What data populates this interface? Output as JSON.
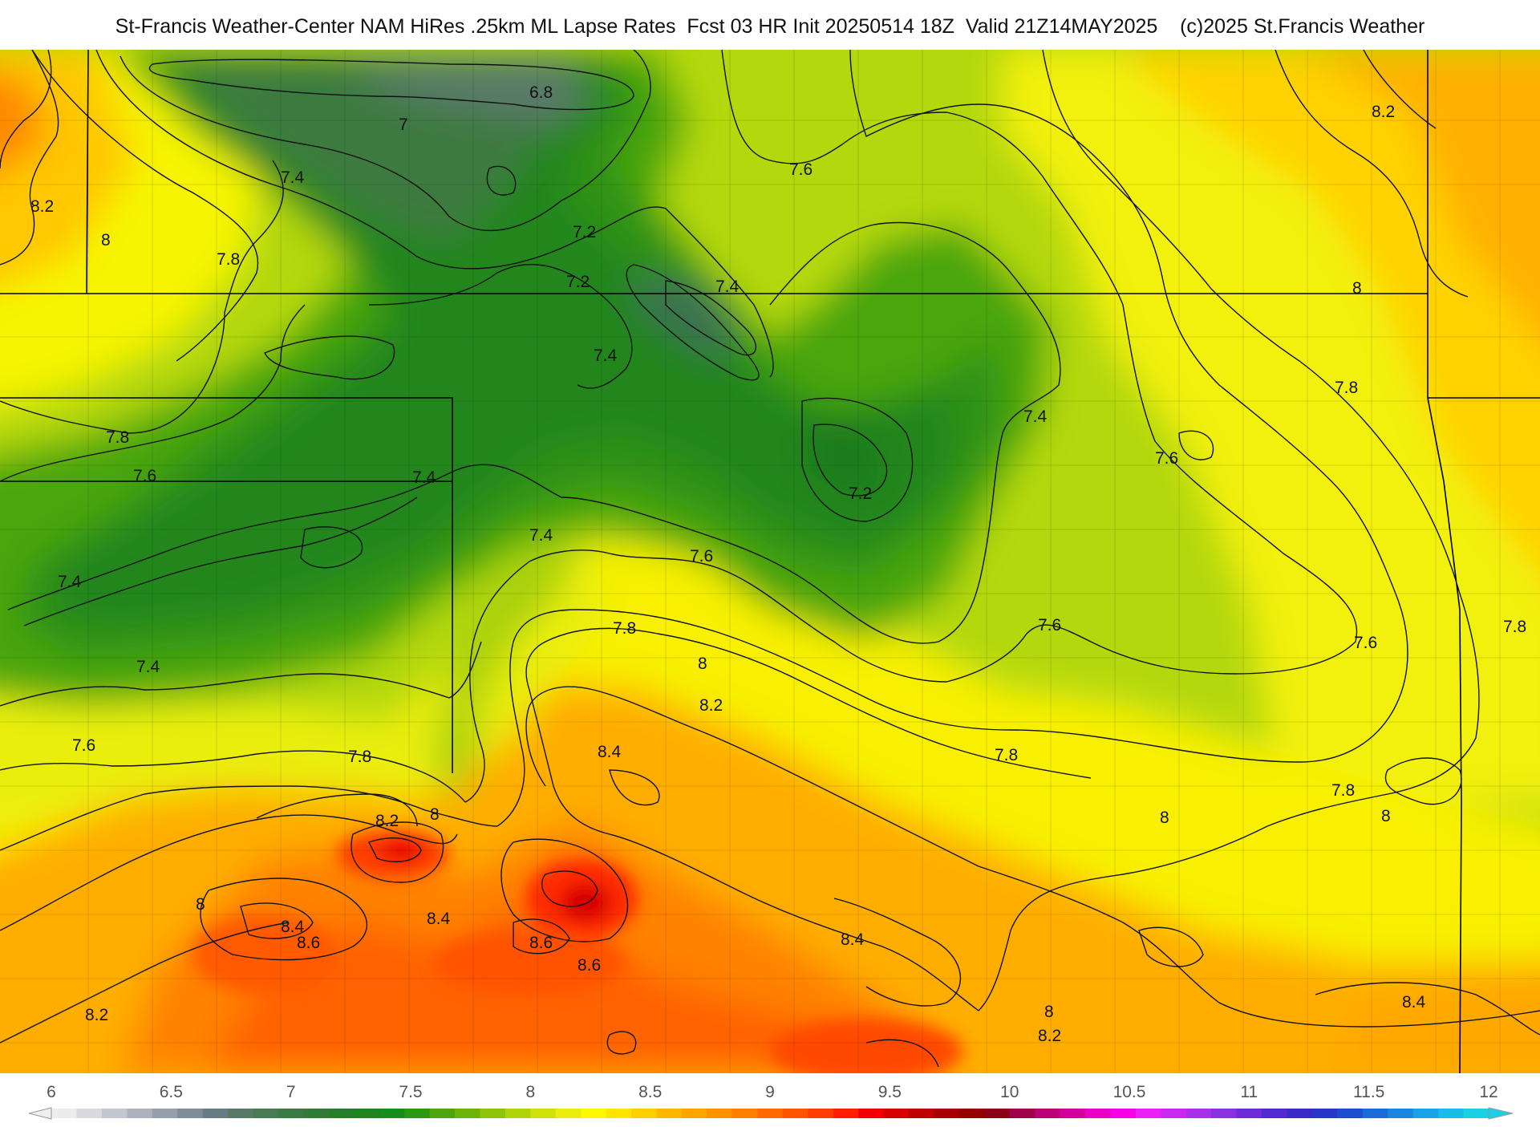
{
  "header": {
    "title": "St-Francis Weather-Center NAM HiRes .25km ML Lapse Rates  Fcst 03 HR Init 20250514 18Z  Valid 21Z14MAY2025    (c)2025 St.Francis Weather"
  },
  "contour_labels": {
    "l01": "6.8",
    "l02": "7",
    "l03": "7.4",
    "l04": "8.2",
    "l05": "8",
    "l06": "7.8",
    "l07": "7.2",
    "l08": "7.2",
    "l09": "7.4",
    "l10": "7.6",
    "l11": "8.2",
    "l12": "8",
    "l13": "7.4",
    "l14": "7.8",
    "l15": "7.8",
    "l16": "7.6",
    "l17": "7.4",
    "l18": "7.2",
    "l19": "7.6",
    "l20": "7.4",
    "l21": "7.4",
    "l22": "7.6",
    "l23": "7.8",
    "l24": "7.4",
    "l25": "7.4",
    "l26": "7.6",
    "l27": "7.6",
    "l28": "7.8",
    "l29": "8",
    "l30": "8.2",
    "l31": "7.6",
    "l32": "7.8",
    "l33": "7.8",
    "l34": "8.4",
    "l35": "8.2",
    "l36": "8",
    "l37": "7.8",
    "l38": "8",
    "l39": "8",
    "l40": "8",
    "l41": "8.4",
    "l42": "8.6",
    "l43": "8.4",
    "l44": "8.6",
    "l45": "8.6",
    "l46": "8.4",
    "l47": "8.2",
    "l48": "8",
    "l49": "8.2",
    "l50": "8.4"
  },
  "colorbar": {
    "ticks": [
      "6",
      "6.5",
      "7",
      "7.5",
      "8",
      "8.5",
      "9",
      "9.5",
      "10",
      "10.5",
      "11",
      "11.5",
      "12"
    ],
    "colors": [
      "#ececef",
      "#d8dae0",
      "#c2c6cf",
      "#acb2be",
      "#95a0ac",
      "#7e8c98",
      "#687c86",
      "#567a66",
      "#487a54",
      "#3c7a44",
      "#317b36",
      "#277d2a",
      "#1d8420",
      "#178d1a",
      "#2a9810",
      "#4aa60c",
      "#6cb40a",
      "#8ec40a",
      "#b0d40a",
      "#d0e20a",
      "#eaee0a",
      "#fff800",
      "#ffe400",
      "#ffcf00",
      "#ffb800",
      "#ffa400",
      "#ff9200",
      "#ff7f00",
      "#ff6a00",
      "#ff5400",
      "#ff3c00",
      "#ff1e00",
      "#f20000",
      "#d80000",
      "#be0000",
      "#a80000",
      "#940000",
      "#8a0014",
      "#a0004a",
      "#ba0076",
      "#d4009c",
      "#ea00c4",
      "#f800e8",
      "#e820f4",
      "#c828f0",
      "#a830e8",
      "#8a30e0",
      "#6e2cd8",
      "#5228d0",
      "#3a2ac8",
      "#2636c8",
      "#1a50d0",
      "#1a6ad8",
      "#1a86e0",
      "#1aa2e6",
      "#1abce8",
      "#1ad0e4"
    ]
  },
  "map_colors": {
    "orange": "#ff9a00",
    "yellow": "#fff700",
    "green": "#3a9a10",
    "red": "#ff1e00",
    "contour": "#111111",
    "border": "#000000"
  }
}
